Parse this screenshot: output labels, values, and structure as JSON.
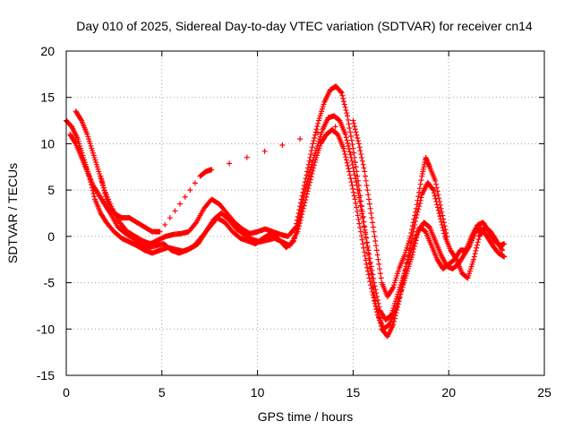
{
  "chart_data": {
    "type": "scatter",
    "title": "Day 010 of 2025, Sidereal Day-to-day VTEC variation (SDTVAR) for receiver cn14",
    "xlabel": "GPS time / hours",
    "ylabel": "SDTVAR / TECUs",
    "xlim": [
      0,
      25
    ],
    "ylim": [
      -15,
      20
    ],
    "xticks": [
      0,
      5,
      10,
      15,
      20,
      25
    ],
    "yticks": [
      -15,
      -10,
      -5,
      0,
      5,
      10,
      15,
      20
    ],
    "grid": true,
    "marker": "+",
    "color": "#ff0000",
    "series": [
      {
        "name": "track-1",
        "points": [
          [
            0.0,
            12.5
          ],
          [
            0.3,
            11.8
          ],
          [
            0.6,
            10.5
          ],
          [
            0.9,
            8.5
          ],
          [
            1.2,
            6.5
          ],
          [
            1.5,
            4.0
          ],
          [
            1.8,
            2.5
          ],
          [
            2.1,
            1.5
          ],
          [
            2.5,
            0.5
          ],
          [
            2.9,
            -0.2
          ],
          [
            3.3,
            -0.6
          ],
          [
            3.7,
            -1.0
          ],
          [
            4.1,
            -1.5
          ],
          [
            4.5,
            -1.8
          ],
          [
            4.9,
            -1.5
          ],
          [
            5.3,
            -1.2
          ],
          [
            5.7,
            -1.4
          ],
          [
            6.1,
            -1.6
          ],
          [
            6.5,
            -1.3
          ],
          [
            6.9,
            -0.8
          ],
          [
            7.3,
            0.5
          ],
          [
            7.7,
            1.8
          ],
          [
            8.1,
            2.5
          ],
          [
            8.5,
            1.8
          ],
          [
            8.9,
            0.8
          ],
          [
            9.3,
            0.2
          ],
          [
            9.7,
            -0.3
          ],
          [
            10.1,
            -0.6
          ],
          [
            10.5,
            -0.4
          ],
          [
            10.9,
            -0.2
          ],
          [
            11.3,
            -0.6
          ],
          [
            11.7,
            -1.0
          ],
          [
            12.1,
            0.5
          ],
          [
            12.4,
            3.0
          ],
          [
            12.7,
            5.5
          ],
          [
            13.0,
            8.0
          ],
          [
            13.3,
            10.0
          ],
          [
            13.6,
            11.0
          ],
          [
            13.9,
            11.5
          ],
          [
            14.2,
            11.0
          ],
          [
            14.5,
            9.5
          ],
          [
            14.8,
            7.0
          ],
          [
            15.1,
            4.0
          ],
          [
            15.4,
            0.5
          ],
          [
            15.7,
            -3.0
          ],
          [
            16.0,
            -6.0
          ],
          [
            16.3,
            -8.5
          ],
          [
            16.6,
            -10.0
          ],
          [
            16.9,
            -9.5
          ],
          [
            17.2,
            -8.0
          ],
          [
            17.5,
            -6.0
          ],
          [
            17.8,
            -4.0
          ],
          [
            18.1,
            -2.0
          ],
          [
            18.4,
            0.5
          ],
          [
            18.7,
            1.5
          ],
          [
            19.0,
            1.0
          ],
          [
            19.3,
            -0.5
          ],
          [
            19.6,
            -2.0
          ],
          [
            19.9,
            -3.2
          ],
          [
            20.2,
            -3.5
          ],
          [
            20.5,
            -3.0
          ],
          [
            20.8,
            -2.0
          ],
          [
            21.1,
            -1.0
          ],
          [
            21.4,
            0.5
          ],
          [
            21.7,
            0.8
          ],
          [
            22.0,
            0.0
          ],
          [
            22.3,
            -1.0
          ],
          [
            22.6,
            -1.8
          ],
          [
            22.9,
            -2.2
          ]
        ]
      },
      {
        "name": "track-2",
        "points": [
          [
            0.5,
            13.5
          ],
          [
            0.8,
            12.5
          ],
          [
            1.1,
            11.0
          ],
          [
            1.4,
            9.0
          ],
          [
            1.7,
            7.0
          ],
          [
            2.0,
            5.0
          ],
          [
            2.4,
            3.0
          ],
          [
            2.8,
            1.5
          ],
          [
            3.2,
            0.5
          ],
          [
            3.6,
            0.0
          ],
          [
            4.0,
            -0.5
          ],
          [
            4.4,
            -0.8
          ],
          [
            4.8,
            -0.4
          ],
          [
            5.2,
            0.0
          ],
          [
            5.6,
            0.2
          ],
          [
            6.0,
            0.3
          ],
          [
            6.4,
            0.5
          ],
          [
            6.8,
            1.5
          ],
          [
            7.2,
            3.0
          ],
          [
            7.6,
            4.0
          ],
          [
            8.0,
            3.5
          ],
          [
            8.4,
            2.5
          ],
          [
            8.8,
            1.5
          ],
          [
            9.2,
            0.8
          ],
          [
            9.6,
            0.3
          ],
          [
            10.0,
            0.5
          ],
          [
            10.4,
            0.8
          ],
          [
            10.8,
            0.5
          ],
          [
            11.2,
            0.2
          ],
          [
            11.6,
            0.0
          ],
          [
            12.0,
            1.0
          ],
          [
            12.3,
            4.0
          ],
          [
            12.6,
            7.0
          ],
          [
            12.9,
            10.0
          ],
          [
            13.2,
            12.5
          ],
          [
            13.5,
            14.5
          ],
          [
            13.8,
            15.8
          ],
          [
            14.1,
            16.2
          ],
          [
            14.4,
            15.5
          ],
          [
            14.7,
            13.0
          ],
          [
            15.0,
            9.5
          ],
          [
            15.3,
            5.5
          ],
          [
            15.6,
            1.0
          ],
          [
            15.9,
            -3.5
          ],
          [
            16.2,
            -7.5
          ],
          [
            16.5,
            -10.0
          ],
          [
            16.8,
            -10.8
          ],
          [
            17.1,
            -9.5
          ],
          [
            17.4,
            -7.0
          ],
          [
            17.7,
            -4.0
          ],
          [
            18.0,
            -1.0
          ],
          [
            18.3,
            2.0
          ],
          [
            18.6,
            4.5
          ],
          [
            18.9,
            5.8
          ],
          [
            19.2,
            5.0
          ],
          [
            19.5,
            2.5
          ],
          [
            19.8,
            0.0
          ],
          [
            20.1,
            -1.5
          ],
          [
            20.4,
            -2.5
          ],
          [
            20.7,
            -4.0
          ],
          [
            21.0,
            -4.5
          ],
          [
            21.3,
            -2.5
          ],
          [
            21.6,
            0.0
          ],
          [
            21.9,
            1.0
          ],
          [
            22.2,
            0.5
          ],
          [
            22.5,
            -0.5
          ],
          [
            22.8,
            -1.5
          ]
        ]
      },
      {
        "name": "track-3",
        "points": [
          [
            0.2,
            11.0
          ],
          [
            0.5,
            10.0
          ],
          [
            0.8,
            8.5
          ],
          [
            1.1,
            7.0
          ],
          [
            1.4,
            5.5
          ],
          [
            1.7,
            4.5
          ],
          [
            2.0,
            3.5
          ],
          [
            2.3,
            2.5
          ],
          [
            2.7,
            1.0
          ],
          [
            3.1,
            0.3
          ],
          [
            3.5,
            -0.2
          ],
          [
            3.9,
            -0.8
          ],
          [
            4.3,
            -1.2
          ],
          [
            4.7,
            -1.0
          ],
          [
            5.1,
            -0.8
          ],
          [
            5.5,
            -1.5
          ],
          [
            5.9,
            -1.8
          ],
          [
            6.3,
            -1.5
          ],
          [
            6.7,
            -1.0
          ],
          [
            7.1,
            0.0
          ],
          [
            7.5,
            1.0
          ],
          [
            7.9,
            2.0
          ],
          [
            8.3,
            1.5
          ],
          [
            8.7,
            0.5
          ],
          [
            9.1,
            -0.2
          ],
          [
            9.5,
            -0.5
          ],
          [
            9.9,
            -0.8
          ],
          [
            10.3,
            -0.2
          ],
          [
            10.7,
            0.3
          ],
          [
            11.1,
            -0.3
          ],
          [
            11.5,
            -1.2
          ],
          [
            11.9,
            -0.5
          ],
          [
            12.2,
            2.0
          ],
          [
            12.5,
            5.0
          ],
          [
            12.8,
            7.5
          ],
          [
            13.1,
            9.5
          ],
          [
            13.4,
            11.5
          ],
          [
            13.7,
            12.8
          ],
          [
            14.0,
            13.0
          ],
          [
            14.3,
            12.5
          ],
          [
            14.6,
            11.0
          ],
          [
            14.9,
            8.5
          ],
          [
            15.2,
            5.5
          ],
          [
            15.5,
            2.0
          ],
          [
            15.8,
            -1.5
          ],
          [
            16.1,
            -5.0
          ],
          [
            16.4,
            -8.0
          ],
          [
            16.7,
            -9.0
          ],
          [
            17.0,
            -8.5
          ],
          [
            17.3,
            -6.5
          ],
          [
            17.6,
            -4.5
          ],
          [
            17.9,
            -2.5
          ],
          [
            18.2,
            -0.5
          ],
          [
            18.5,
            1.0
          ],
          [
            18.8,
            0.5
          ],
          [
            19.1,
            -1.0
          ],
          [
            19.4,
            -2.5
          ],
          [
            19.7,
            -3.5
          ],
          [
            20.0,
            -3.0
          ],
          [
            20.3,
            -2.5
          ],
          [
            20.6,
            -1.5
          ],
          [
            20.9,
            -1.5
          ],
          [
            21.2,
            0.0
          ],
          [
            21.5,
            1.2
          ],
          [
            21.8,
            1.5
          ],
          [
            22.1,
            0.5
          ],
          [
            22.4,
            -0.5
          ],
          [
            22.7,
            -1.0
          ],
          [
            22.9,
            -0.8
          ]
        ]
      },
      {
        "name": "track-4",
        "points": [
          [
            1.8,
            6.5
          ],
          [
            2.1,
            4.0
          ],
          [
            2.5,
            2.5
          ],
          [
            2.9,
            2.0
          ],
          [
            3.3,
            2.0
          ],
          [
            3.7,
            1.5
          ],
          [
            4.1,
            1.0
          ],
          [
            4.5,
            0.5
          ],
          [
            4.9,
            0.5
          ],
          [
            7.0,
            6.5
          ],
          [
            7.3,
            7.0
          ],
          [
            7.6,
            7.2
          ],
          [
            15.0,
            12.5
          ],
          [
            15.3,
            10.0
          ],
          [
            15.6,
            7.0
          ],
          [
            15.9,
            3.0
          ],
          [
            16.2,
            -1.0
          ],
          [
            16.5,
            -5.0
          ],
          [
            16.8,
            -6.5
          ],
          [
            17.1,
            -5.5
          ],
          [
            17.4,
            -3.5
          ],
          [
            17.7,
            -2.0
          ],
          [
            18.0,
            0.0
          ],
          [
            18.3,
            3.0
          ],
          [
            18.6,
            6.5
          ],
          [
            18.8,
            8.5
          ],
          [
            19.0,
            7.5
          ],
          [
            19.3,
            6.0
          ],
          [
            19.6,
            3.0
          ],
          [
            19.9,
            0.0
          ]
        ]
      }
    ]
  }
}
